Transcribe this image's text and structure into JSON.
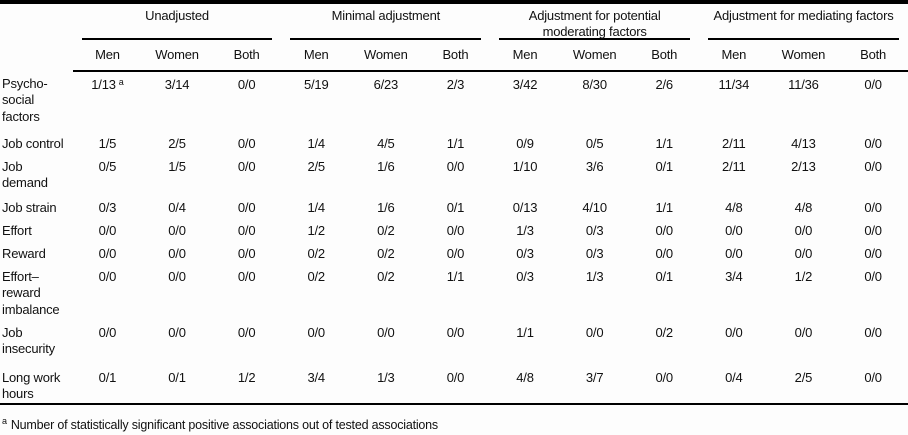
{
  "table": {
    "groups": [
      {
        "label": "Unadjusted"
      },
      {
        "label": "Minimal adjustment"
      },
      {
        "label": "Adjustment for potential moderating factors"
      },
      {
        "label": "Adjustment for mediating factors"
      }
    ],
    "sub": [
      "Men",
      "Women",
      "Both"
    ],
    "rows": [
      {
        "label": "Psycho-\nsocial\nfactors",
        "sup": "a",
        "v": [
          "1/13",
          "3/14",
          "0/0",
          "5/19",
          "6/23",
          "2/3",
          "3/42",
          "8/30",
          "2/6",
          "11/34",
          "11/36",
          "0/0"
        ]
      },
      {
        "label": "Job control",
        "v": [
          "1/5",
          "2/5",
          "0/0",
          "1/4",
          "4/5",
          "1/1",
          "0/9",
          "0/5",
          "1/1",
          "2/11",
          "4/13",
          "0/0"
        ]
      },
      {
        "label": "Job\ndemand",
        "v": [
          "0/5",
          "1/5",
          "0/0",
          "2/5",
          "1/6",
          "0/0",
          "1/10",
          "3/6",
          "0/1",
          "2/11",
          "2/13",
          "0/0"
        ]
      },
      {
        "label": "Job strain",
        "v": [
          "0/3",
          "0/4",
          "0/0",
          "1/4",
          "1/6",
          "0/1",
          "0/13",
          "4/10",
          "1/1",
          "4/8",
          "4/8",
          "0/0"
        ]
      },
      {
        "label": "Effort",
        "v": [
          "0/0",
          "0/0",
          "0/0",
          "1/2",
          "0/2",
          "0/0",
          "1/3",
          "0/3",
          "0/0",
          "0/0",
          "0/0",
          "0/0"
        ]
      },
      {
        "label": "Reward",
        "v": [
          "0/0",
          "0/0",
          "0/0",
          "0/2",
          "0/2",
          "0/0",
          "0/3",
          "0/3",
          "0/0",
          "0/0",
          "0/0",
          "0/0"
        ]
      },
      {
        "label": "Effort–\nreward\nimbalance",
        "v": [
          "0/0",
          "0/0",
          "0/0",
          "0/2",
          "0/2",
          "1/1",
          "0/3",
          "1/3",
          "0/1",
          "3/4",
          "1/2",
          "0/0"
        ]
      },
      {
        "label": "Job\ninsecurity",
        "v": [
          "0/0",
          "0/0",
          "0/0",
          "0/0",
          "0/0",
          "0/0",
          "1/1",
          "0/0",
          "0/2",
          "0/0",
          "0/0",
          "0/0"
        ]
      },
      {
        "label": "Long work\nhours",
        "v": [
          "0/1",
          "0/1",
          "1/2",
          "3/4",
          "1/3",
          "0/0",
          "4/8",
          "3/7",
          "0/0",
          "0/4",
          "2/5",
          "0/0"
        ]
      }
    ]
  },
  "footnote": {
    "marker": "a",
    "text": "Number of statistically significant positive associations out of tested associations"
  },
  "colors": {
    "background": "#fdfdfd",
    "text": "#111111",
    "rule": "#000000"
  }
}
